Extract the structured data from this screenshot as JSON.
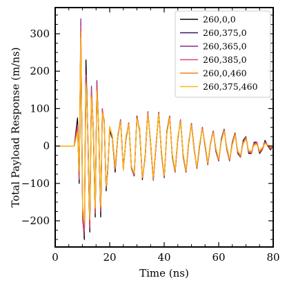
{
  "chart_data": {
    "type": "line",
    "title": "",
    "xlabel": "Time (ns)",
    "ylabel": "Total Payload Response (m/ns)",
    "xlim": [
      0,
      80
    ],
    "ylim": [
      -270,
      370
    ],
    "xticks": [
      0,
      20,
      40,
      60,
      80
    ],
    "yticks": [
      -200,
      -100,
      0,
      100,
      200,
      300
    ],
    "grid": false,
    "legend_position": "top-right",
    "series": [
      {
        "name": "260,0,0",
        "color": "#000000",
        "x": [
          0,
          7,
          8.2,
          8.8,
          9.4,
          10.1,
          10.7,
          11.3,
          12,
          12.7,
          13.3,
          14,
          14.7,
          15.3,
          16,
          16.7,
          17.3,
          18,
          18.7,
          19.3,
          20,
          21,
          22,
          23,
          24,
          25,
          26,
          27,
          28,
          29,
          30,
          31,
          32,
          33,
          34,
          35,
          36,
          37,
          38,
          39,
          40,
          41,
          42,
          43,
          44,
          45,
          46,
          47,
          48,
          49,
          50,
          51,
          52,
          53,
          54,
          55,
          56,
          57,
          58,
          59,
          60,
          61,
          62,
          63,
          64,
          65,
          66,
          67,
          68,
          69,
          70,
          71,
          72,
          73,
          74,
          75,
          76,
          77,
          78,
          79,
          80
        ],
        "values": [
          0,
          0,
          75,
          -100,
          280,
          -190,
          -250,
          230,
          20,
          -230,
          150,
          40,
          -190,
          170,
          40,
          -190,
          90,
          70,
          -120,
          -60,
          40,
          20,
          -70,
          30,
          70,
          -60,
          20,
          60,
          -60,
          -80,
          80,
          40,
          -90,
          -30,
          90,
          10,
          -90,
          0,
          90,
          -20,
          -85,
          40,
          80,
          -30,
          -70,
          20,
          70,
          -30,
          -70,
          10,
          60,
          -10,
          -60,
          0,
          50,
          0,
          -50,
          10,
          40,
          -15,
          -40,
          20,
          45,
          -10,
          -40,
          10,
          35,
          -20,
          -30,
          15,
          25,
          -20,
          -20,
          10,
          10,
          -20,
          -10,
          15,
          0,
          -10,
          0
        ]
      },
      {
        "name": "260,375,0",
        "color": "#3b0f70",
        "x": [
          0,
          7,
          8.2,
          8.8,
          9.4,
          10.1,
          10.7,
          11.3,
          12,
          12.7,
          13.3,
          14,
          14.7,
          15.3,
          16,
          16.7,
          17.3,
          18,
          18.7,
          19.3,
          20,
          21,
          22,
          23,
          24,
          25,
          26,
          27,
          28,
          29,
          30,
          31,
          32,
          33,
          34,
          35,
          36,
          37,
          38,
          39,
          40,
          41,
          42,
          43,
          44,
          45,
          46,
          47,
          48,
          49,
          50,
          51,
          52,
          53,
          54,
          55,
          56,
          57,
          58,
          59,
          60,
          61,
          62,
          63,
          64,
          65,
          66,
          67,
          68,
          69,
          70,
          71,
          72,
          73,
          74,
          75,
          76,
          77,
          78,
          79,
          80
        ],
        "values": [
          0,
          0,
          60,
          -80,
          300,
          -170,
          -220,
          200,
          30,
          -210,
          140,
          50,
          -175,
          160,
          35,
          -180,
          95,
          65,
          -115,
          -65,
          45,
          25,
          -65,
          25,
          70,
          -65,
          25,
          60,
          -60,
          -75,
          75,
          45,
          -85,
          -35,
          88,
          12,
          -88,
          2,
          88,
          -18,
          -82,
          38,
          78,
          -28,
          -68,
          22,
          68,
          -28,
          -68,
          12,
          58,
          -12,
          -58,
          2,
          48,
          2,
          -48,
          8,
          38,
          -12,
          -38,
          18,
          42,
          -8,
          -38,
          8,
          32,
          -18,
          -28,
          12,
          22,
          -18,
          -18,
          8,
          8,
          -18,
          -8,
          12,
          0,
          -8,
          0
        ]
      },
      {
        "name": "260,365,0",
        "color": "#8c2981",
        "x": [
          0,
          7,
          8.2,
          8.8,
          9.4,
          10.1,
          10.7,
          11.3,
          12,
          12.7,
          13.3,
          14,
          14.7,
          15.3,
          16,
          16.7,
          17.3,
          18,
          18.7,
          19.3,
          20,
          21,
          22,
          23,
          24,
          25,
          26,
          27,
          28,
          29,
          30,
          31,
          32,
          33,
          34,
          35,
          36,
          37,
          38,
          39,
          40,
          41,
          42,
          43,
          44,
          45,
          46,
          47,
          48,
          49,
          50,
          51,
          52,
          53,
          54,
          55,
          56,
          57,
          58,
          59,
          60,
          61,
          62,
          63,
          64,
          65,
          66,
          67,
          68,
          69,
          70,
          71,
          72,
          73,
          74,
          75,
          76,
          77,
          78,
          79,
          80
        ],
        "values": [
          0,
          0,
          50,
          -90,
          340,
          -200,
          -240,
          180,
          25,
          -220,
          160,
          45,
          -180,
          175,
          30,
          -170,
          100,
          60,
          -110,
          -70,
          50,
          22,
          -60,
          28,
          68,
          -62,
          22,
          62,
          -58,
          -78,
          78,
          42,
          -86,
          -32,
          92,
          8,
          -92,
          4,
          90,
          -16,
          -84,
          36,
          80,
          -26,
          -70,
          18,
          70,
          -26,
          -70,
          8,
          60,
          -8,
          -60,
          4,
          50,
          4,
          -50,
          6,
          40,
          -10,
          -40,
          16,
          44,
          -6,
          -40,
          6,
          34,
          -16,
          -30,
          10,
          24,
          -16,
          -20,
          6,
          10,
          -16,
          -10,
          10,
          2,
          -6,
          0
        ]
      },
      {
        "name": "260,385,0",
        "color": "#de4968",
        "x": [
          0,
          7,
          8.2,
          8.8,
          9.4,
          10.1,
          10.7,
          11.3,
          12,
          12.7,
          13.3,
          14,
          14.7,
          15.3,
          16,
          16.7,
          17.3,
          18,
          18.7,
          19.3,
          20,
          21,
          22,
          23,
          24,
          25,
          26,
          27,
          28,
          29,
          30,
          31,
          32,
          33,
          34,
          35,
          36,
          37,
          38,
          39,
          40,
          41,
          42,
          43,
          44,
          45,
          46,
          47,
          48,
          49,
          50,
          51,
          52,
          53,
          54,
          55,
          56,
          57,
          58,
          59,
          60,
          61,
          62,
          63,
          64,
          65,
          66,
          67,
          68,
          69,
          70,
          71,
          72,
          73,
          74,
          75,
          76,
          77,
          78,
          79,
          80
        ],
        "values": [
          0,
          0,
          55,
          -85,
          320,
          -185,
          -230,
          190,
          28,
          -215,
          150,
          48,
          -178,
          168,
          32,
          -175,
          97,
          62,
          -112,
          -68,
          48,
          24,
          -62,
          26,
          69,
          -63,
          24,
          61,
          -59,
          -77,
          77,
          44,
          -86,
          -34,
          90,
          10,
          -90,
          3,
          89,
          -17,
          -83,
          37,
          79,
          -27,
          -69,
          20,
          69,
          -27,
          -69,
          10,
          59,
          -10,
          -59,
          3,
          49,
          3,
          -49,
          7,
          39,
          -11,
          -39,
          17,
          43,
          -7,
          -39,
          7,
          33,
          -17,
          -29,
          11,
          23,
          -17,
          -19,
          7,
          9,
          -17,
          -9,
          11,
          1,
          -7,
          0
        ]
      },
      {
        "name": "260,0,460",
        "color": "#fe7d15",
        "x": [
          0,
          7,
          8.2,
          8.8,
          9.4,
          10.1,
          10.7,
          11.3,
          12,
          12.7,
          13.3,
          14,
          14.7,
          15.3,
          16,
          16.7,
          17.3,
          18,
          18.7,
          19.3,
          20,
          21,
          22,
          23,
          24,
          25,
          26,
          27,
          28,
          29,
          30,
          31,
          32,
          33,
          34,
          35,
          36,
          37,
          38,
          39,
          40,
          41,
          42,
          43,
          44,
          45,
          46,
          47,
          48,
          49,
          50,
          51,
          52,
          53,
          54,
          55,
          56,
          57,
          58,
          59,
          60,
          61,
          62,
          63,
          64,
          65,
          66,
          67,
          68,
          69,
          70,
          71,
          72,
          73,
          74,
          75,
          76,
          77,
          78,
          79,
          80
        ],
        "values": [
          0,
          0,
          40,
          -70,
          305,
          -175,
          -210,
          170,
          35,
          -200,
          135,
          55,
          -170,
          150,
          40,
          -165,
          90,
          68,
          -108,
          -72,
          50,
          26,
          -58,
          30,
          66,
          -64,
          26,
          58,
          -56,
          -74,
          74,
          46,
          -84,
          -36,
          86,
          14,
          -86,
          6,
          86,
          -14,
          -80,
          34,
          76,
          -24,
          -66,
          24,
          66,
          -24,
          -66,
          14,
          56,
          -14,
          -56,
          6,
          46,
          6,
          -46,
          10,
          36,
          -8,
          -36,
          14,
          40,
          -4,
          -36,
          4,
          30,
          -14,
          -26,
          8,
          20,
          -14,
          -16,
          4,
          6,
          -14,
          -6,
          8,
          2,
          -4,
          0
        ]
      },
      {
        "name": "260,375,460",
        "color": "#fcb814",
        "x": [
          0,
          7,
          8.2,
          8.8,
          9.4,
          10.1,
          10.7,
          11.3,
          12,
          12.7,
          13.3,
          14,
          14.7,
          15.3,
          16,
          16.7,
          17.3,
          18,
          18.7,
          19.3,
          20,
          21,
          22,
          23,
          24,
          25,
          26,
          27,
          28,
          29,
          30,
          31,
          32,
          33,
          34,
          35,
          36,
          37,
          38,
          39,
          40,
          41,
          42,
          43,
          44,
          45,
          46,
          47,
          48,
          49,
          50,
          51,
          52,
          53,
          54,
          55,
          56,
          57,
          58,
          59,
          60,
          61,
          62,
          63,
          64,
          65,
          66,
          67,
          68,
          69,
          70,
          71,
          72,
          73,
          74,
          75,
          76,
          77,
          78,
          79,
          80
        ],
        "values": [
          0,
          0,
          35,
          -65,
          290,
          -165,
          -200,
          165,
          38,
          -195,
          130,
          58,
          -165,
          145,
          42,
          -160,
          88,
          70,
          -105,
          -75,
          52,
          28,
          -56,
          32,
          65,
          -65,
          28,
          57,
          -55,
          -72,
          72,
          48,
          -82,
          -38,
          84,
          16,
          -84,
          8,
          84,
          -12,
          -78,
          32,
          74,
          -22,
          -64,
          26,
          64,
          -22,
          -64,
          16,
          54,
          -16,
          -54,
          8,
          44,
          8,
          -44,
          12,
          34,
          -6,
          -34,
          12,
          38,
          -2,
          -34,
          2,
          28,
          -12,
          -24,
          6,
          18,
          -12,
          -14,
          2,
          4,
          -12,
          -4,
          6,
          4,
          -2,
          0
        ]
      }
    ]
  }
}
